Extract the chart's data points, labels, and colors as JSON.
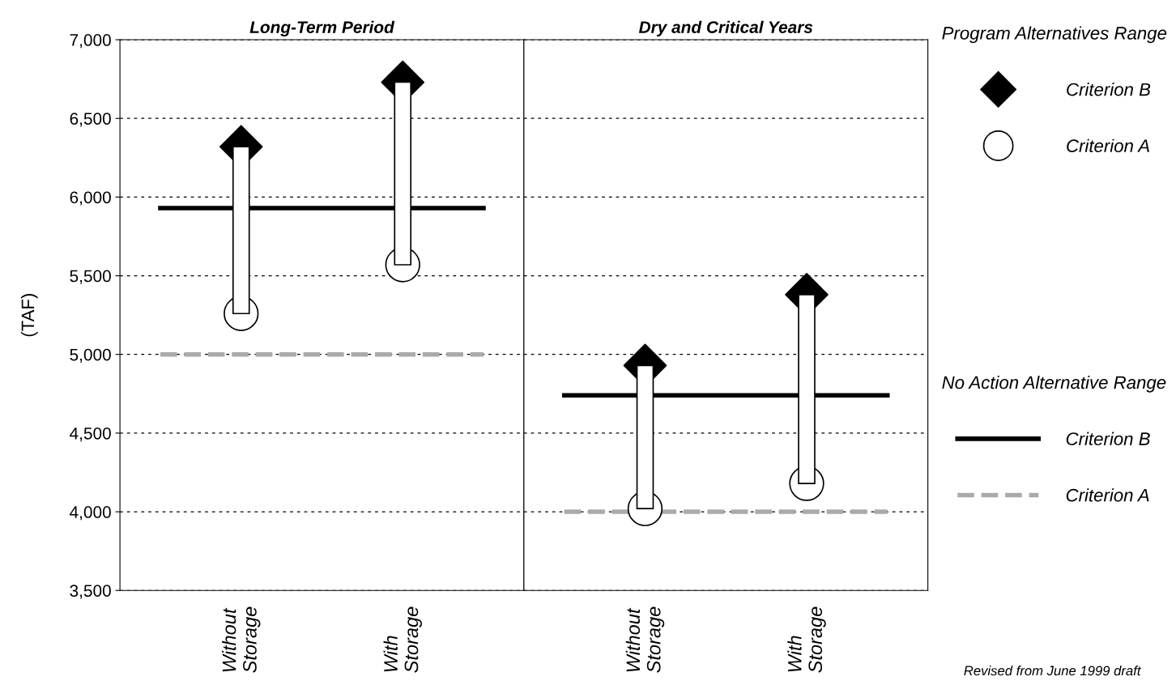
{
  "chart_data": [
    {
      "type": "bar",
      "title": "Long-Term Period",
      "ylabel": "(TAF)",
      "categories": [
        "Without\nStorage",
        "With\nStorage"
      ],
      "series": [
        {
          "color": "#ffffff",
          "base": [
            5260,
            5570
          ],
          "values": [
            1060,
            1160
          ]
        },
        {
          "type": "scatter",
          "name": "Criterion B",
          "color": "#000000",
          "marker": "diamond",
          "values": [
            6320,
            6730
          ]
        },
        {
          "type": "scatter",
          "name": "Criterion A",
          "color": "#ffffff",
          "marker": "circle",
          "values": [
            5260,
            5570
          ]
        }
      ],
      "ylim": [
        3500,
        7000
      ],
      "yticks": [
        {
          "value": 3500,
          "label": "3,500"
        },
        {
          "value": 4000,
          "label": "4,000"
        },
        {
          "value": 4500,
          "label": "4,500"
        },
        {
          "value": 5000,
          "label": "5,000"
        },
        {
          "value": 5500,
          "label": "5,500"
        },
        {
          "value": 6000,
          "label": "6,000"
        },
        {
          "value": 6500,
          "label": "6,500"
        },
        {
          "value": 7000,
          "label": "7,000"
        }
      ],
      "grid": "y",
      "legend": "right",
      "legend_title": "Program Alternatives Range",
      "ref_lines": [
        {
          "axis": "y",
          "value": 5930,
          "color": "#000000",
          "line_style": "solid"
        },
        {
          "axis": "y",
          "value": 5000,
          "color": "#aaaaaa",
          "line_style": "dashed"
        }
      ]
    },
    {
      "type": "bar",
      "title": "Dry and Critical Years",
      "categories": [
        "Without\nStorage",
        "With\nStorage"
      ],
      "series": [
        {
          "color": "#ffffff",
          "base": [
            4020,
            4180
          ],
          "values": [
            910,
            1200
          ]
        },
        {
          "type": "scatter",
          "color": "#000000",
          "marker": "diamond",
          "values": [
            4930,
            5380
          ]
        },
        {
          "type": "scatter",
          "color": "#ffffff",
          "marker": "circle",
          "values": [
            4020,
            4180
          ]
        }
      ],
      "ylim": [
        3500,
        7000
      ],
      "yticks": [
        3500,
        4000,
        4500,
        5000,
        5500,
        6000,
        6500,
        7000
      ],
      "tick_labels": "x",
      "grid": "y",
      "legend": "right",
      "legend_title": "No Action Alternative Range",
      "ref_lines": [
        {
          "axis": "y",
          "value": 4740,
          "label": "Criterion B",
          "color": "#000000",
          "line_style": "solid"
        },
        {
          "axis": "y",
          "value": 4000,
          "label": "Criterion A",
          "color": "#aaaaaa",
          "line_style": "dashed"
        }
      ],
      "annotations": [
        "Revised from June 1999 draft"
      ]
    }
  ]
}
